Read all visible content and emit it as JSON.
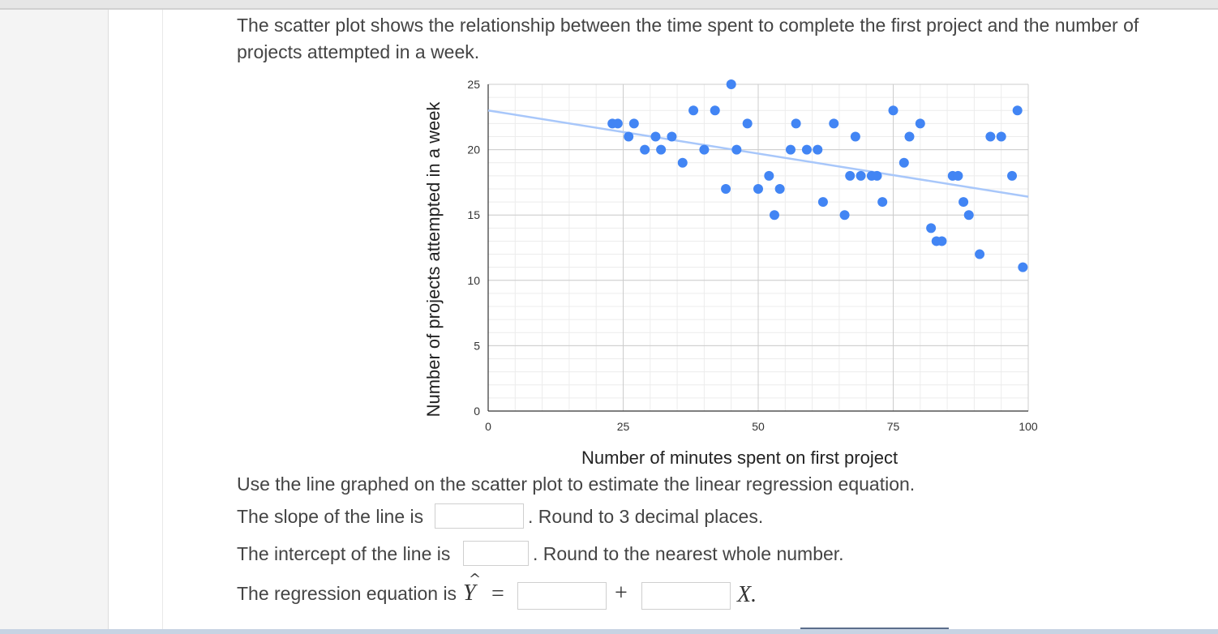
{
  "question": {
    "intro_line1": "The scatter plot shows the relationship between the time spent to complete the first project and the number of",
    "intro_line2": "projects attempted in a week.",
    "instruction": "Use the line graphed on the scatter plot to estimate the linear regression equation.",
    "slope_prefix": "The slope of the line is",
    "slope_suffix": ". Round to 3 decimal places.",
    "slope_value": "",
    "intercept_prefix": "The intercept of the line is",
    "intercept_suffix": ". Round to the nearest whole number.",
    "intercept_value": "",
    "regression_prefix": "The regression equation is",
    "regression_symbol": "Y",
    "equals": "=",
    "plus": "+",
    "x_variable": "X.",
    "regression_term1": "",
    "regression_term2": ""
  },
  "chart_data": {
    "type": "scatter",
    "title": "",
    "xlabel": "Number of minutes spent on first project",
    "ylabel": "Number of projects attempted in a week",
    "xlim": [
      0,
      100
    ],
    "ylim": [
      0,
      25
    ],
    "x_ticks": [
      0,
      25,
      50,
      75,
      100
    ],
    "y_ticks": [
      0,
      5,
      10,
      15,
      20,
      25
    ],
    "grid": true,
    "point_color": "#4285f4",
    "trendline_color": "#a8c7fa",
    "trendline": {
      "x": [
        0,
        100
      ],
      "y": [
        23,
        16.4
      ]
    },
    "points": [
      [
        23,
        22
      ],
      [
        24,
        22
      ],
      [
        26,
        21
      ],
      [
        27,
        22
      ],
      [
        29,
        20
      ],
      [
        31,
        21
      ],
      [
        32,
        20
      ],
      [
        34,
        21
      ],
      [
        36,
        19
      ],
      [
        38,
        23
      ],
      [
        40,
        20
      ],
      [
        42,
        23
      ],
      [
        44,
        17
      ],
      [
        45,
        25
      ],
      [
        46,
        20
      ],
      [
        48,
        22
      ],
      [
        50,
        17
      ],
      [
        52,
        18
      ],
      [
        53,
        15
      ],
      [
        54,
        17
      ],
      [
        56,
        20
      ],
      [
        57,
        22
      ],
      [
        59,
        20
      ],
      [
        61,
        20
      ],
      [
        62,
        16
      ],
      [
        64,
        22
      ],
      [
        66,
        15
      ],
      [
        67,
        18
      ],
      [
        68,
        21
      ],
      [
        69,
        18
      ],
      [
        71,
        18
      ],
      [
        72,
        18
      ],
      [
        73,
        16
      ],
      [
        75,
        23
      ],
      [
        77,
        19
      ],
      [
        78,
        21
      ],
      [
        80,
        22
      ],
      [
        82,
        14
      ],
      [
        83,
        13
      ],
      [
        84,
        13
      ],
      [
        86,
        18
      ],
      [
        87,
        18
      ],
      [
        88,
        16
      ],
      [
        89,
        15
      ],
      [
        91,
        12
      ],
      [
        93,
        21
      ],
      [
        95,
        21
      ],
      [
        97,
        18
      ],
      [
        98,
        23
      ],
      [
        99,
        11
      ]
    ]
  }
}
